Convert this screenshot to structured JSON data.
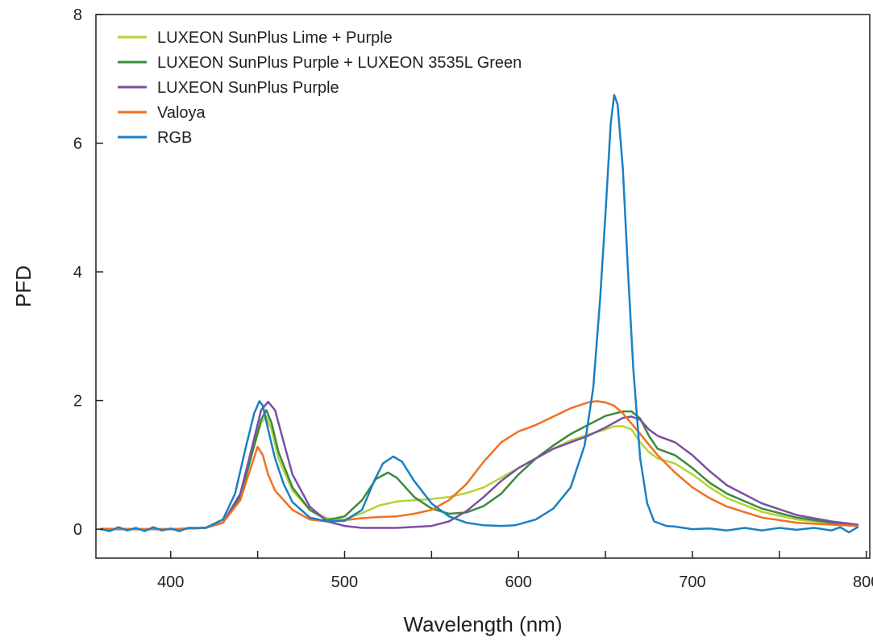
{
  "chart_data": {
    "type": "line",
    "title": "",
    "xlabel": "Wavelength (nm)",
    "ylabel": "PFD",
    "xlim": [
      357,
      802
    ],
    "ylim": [
      -0.45,
      8
    ],
    "xticks": [
      400,
      500,
      600,
      700,
      800
    ],
    "xminor": [
      450,
      550,
      650,
      750
    ],
    "yticks": [
      0,
      2,
      4,
      6,
      8
    ],
    "grid": false,
    "legend": "top-left",
    "series": [
      {
        "name": "LUXEON SunPlus Lime + Purple",
        "color": "#b5d334",
        "points": [
          [
            360,
            0.01
          ],
          [
            400,
            0.0
          ],
          [
            420,
            0.02
          ],
          [
            430,
            0.1
          ],
          [
            440,
            0.5
          ],
          [
            447,
            1.2
          ],
          [
            452,
            1.65
          ],
          [
            455,
            1.75
          ],
          [
            458,
            1.55
          ],
          [
            462,
            1.1
          ],
          [
            470,
            0.6
          ],
          [
            480,
            0.3
          ],
          [
            490,
            0.17
          ],
          [
            500,
            0.15
          ],
          [
            510,
            0.25
          ],
          [
            520,
            0.37
          ],
          [
            530,
            0.43
          ],
          [
            540,
            0.45
          ],
          [
            550,
            0.47
          ],
          [
            560,
            0.5
          ],
          [
            570,
            0.56
          ],
          [
            580,
            0.65
          ],
          [
            590,
            0.8
          ],
          [
            600,
            0.95
          ],
          [
            610,
            1.1
          ],
          [
            620,
            1.25
          ],
          [
            630,
            1.38
          ],
          [
            640,
            1.47
          ],
          [
            650,
            1.55
          ],
          [
            655,
            1.6
          ],
          [
            660,
            1.6
          ],
          [
            665,
            1.55
          ],
          [
            670,
            1.35
          ],
          [
            675,
            1.2
          ],
          [
            680,
            1.1
          ],
          [
            690,
            1.02
          ],
          [
            700,
            0.85
          ],
          [
            710,
            0.65
          ],
          [
            720,
            0.48
          ],
          [
            740,
            0.27
          ],
          [
            760,
            0.15
          ],
          [
            780,
            0.09
          ],
          [
            795,
            0.06
          ]
        ]
      },
      {
        "name": "LUXEON SunPlus Purple + LUXEON 3535L Green",
        "color": "#3c8a3c",
        "points": [
          [
            360,
            0.0
          ],
          [
            400,
            0.0
          ],
          [
            420,
            0.02
          ],
          [
            430,
            0.1
          ],
          [
            440,
            0.5
          ],
          [
            447,
            1.2
          ],
          [
            452,
            1.7
          ],
          [
            455,
            1.85
          ],
          [
            458,
            1.65
          ],
          [
            462,
            1.2
          ],
          [
            470,
            0.65
          ],
          [
            480,
            0.3
          ],
          [
            490,
            0.14
          ],
          [
            500,
            0.2
          ],
          [
            510,
            0.45
          ],
          [
            518,
            0.78
          ],
          [
            525,
            0.88
          ],
          [
            530,
            0.8
          ],
          [
            540,
            0.5
          ],
          [
            550,
            0.32
          ],
          [
            560,
            0.24
          ],
          [
            570,
            0.26
          ],
          [
            580,
            0.36
          ],
          [
            590,
            0.55
          ],
          [
            600,
            0.85
          ],
          [
            610,
            1.1
          ],
          [
            620,
            1.3
          ],
          [
            630,
            1.48
          ],
          [
            640,
            1.62
          ],
          [
            650,
            1.76
          ],
          [
            660,
            1.83
          ],
          [
            665,
            1.83
          ],
          [
            670,
            1.72
          ],
          [
            675,
            1.45
          ],
          [
            680,
            1.25
          ],
          [
            690,
            1.15
          ],
          [
            700,
            0.95
          ],
          [
            710,
            0.72
          ],
          [
            720,
            0.55
          ],
          [
            740,
            0.32
          ],
          [
            760,
            0.18
          ],
          [
            780,
            0.1
          ],
          [
            795,
            0.06
          ]
        ]
      },
      {
        "name": "LUXEON SunPlus Purple",
        "color": "#7b4fa6",
        "points": [
          [
            360,
            0.0
          ],
          [
            400,
            0.0
          ],
          [
            420,
            0.02
          ],
          [
            430,
            0.1
          ],
          [
            440,
            0.55
          ],
          [
            447,
            1.3
          ],
          [
            452,
            1.85
          ],
          [
            456,
            1.98
          ],
          [
            460,
            1.85
          ],
          [
            465,
            1.35
          ],
          [
            470,
            0.85
          ],
          [
            480,
            0.35
          ],
          [
            490,
            0.12
          ],
          [
            500,
            0.05
          ],
          [
            510,
            0.02
          ],
          [
            530,
            0.02
          ],
          [
            550,
            0.05
          ],
          [
            560,
            0.12
          ],
          [
            570,
            0.28
          ],
          [
            580,
            0.5
          ],
          [
            590,
            0.75
          ],
          [
            600,
            0.95
          ],
          [
            610,
            1.1
          ],
          [
            620,
            1.25
          ],
          [
            630,
            1.35
          ],
          [
            640,
            1.45
          ],
          [
            650,
            1.58
          ],
          [
            660,
            1.73
          ],
          [
            665,
            1.75
          ],
          [
            670,
            1.7
          ],
          [
            675,
            1.55
          ],
          [
            680,
            1.45
          ],
          [
            690,
            1.35
          ],
          [
            700,
            1.15
          ],
          [
            710,
            0.9
          ],
          [
            720,
            0.68
          ],
          [
            740,
            0.4
          ],
          [
            760,
            0.22
          ],
          [
            780,
            0.12
          ],
          [
            795,
            0.07
          ]
        ]
      },
      {
        "name": "Valoya",
        "color": "#f07022",
        "points": [
          [
            360,
            0.0
          ],
          [
            400,
            0.0
          ],
          [
            420,
            0.02
          ],
          [
            430,
            0.1
          ],
          [
            440,
            0.45
          ],
          [
            446,
            0.95
          ],
          [
            450,
            1.28
          ],
          [
            453,
            1.15
          ],
          [
            456,
            0.85
          ],
          [
            460,
            0.6
          ],
          [
            470,
            0.3
          ],
          [
            480,
            0.15
          ],
          [
            490,
            0.12
          ],
          [
            500,
            0.14
          ],
          [
            510,
            0.17
          ],
          [
            520,
            0.19
          ],
          [
            530,
            0.2
          ],
          [
            540,
            0.24
          ],
          [
            550,
            0.3
          ],
          [
            560,
            0.45
          ],
          [
            570,
            0.7
          ],
          [
            580,
            1.05
          ],
          [
            590,
            1.35
          ],
          [
            600,
            1.52
          ],
          [
            610,
            1.62
          ],
          [
            620,
            1.75
          ],
          [
            630,
            1.88
          ],
          [
            640,
            1.97
          ],
          [
            645,
            1.99
          ],
          [
            650,
            1.97
          ],
          [
            655,
            1.92
          ],
          [
            660,
            1.8
          ],
          [
            670,
            1.48
          ],
          [
            680,
            1.15
          ],
          [
            690,
            0.88
          ],
          [
            700,
            0.65
          ],
          [
            710,
            0.48
          ],
          [
            720,
            0.35
          ],
          [
            740,
            0.18
          ],
          [
            760,
            0.1
          ],
          [
            780,
            0.07
          ],
          [
            795,
            0.05
          ]
        ]
      },
      {
        "name": "RGB",
        "color": "#1a80c4",
        "points": [
          [
            360,
            0.0
          ],
          [
            365,
            -0.03
          ],
          [
            370,
            0.03
          ],
          [
            375,
            -0.02
          ],
          [
            380,
            0.02
          ],
          [
            385,
            -0.03
          ],
          [
            390,
            0.03
          ],
          [
            395,
            -0.02
          ],
          [
            400,
            0.01
          ],
          [
            405,
            -0.03
          ],
          [
            410,
            0.02
          ],
          [
            420,
            0.02
          ],
          [
            430,
            0.15
          ],
          [
            437,
            0.55
          ],
          [
            443,
            1.25
          ],
          [
            448,
            1.8
          ],
          [
            451,
            1.99
          ],
          [
            453,
            1.92
          ],
          [
            456,
            1.55
          ],
          [
            460,
            1.1
          ],
          [
            465,
            0.7
          ],
          [
            470,
            0.42
          ],
          [
            480,
            0.18
          ],
          [
            490,
            0.12
          ],
          [
            500,
            0.13
          ],
          [
            510,
            0.3
          ],
          [
            517,
            0.75
          ],
          [
            522,
            1.02
          ],
          [
            528,
            1.13
          ],
          [
            533,
            1.05
          ],
          [
            540,
            0.75
          ],
          [
            550,
            0.4
          ],
          [
            560,
            0.2
          ],
          [
            570,
            0.1
          ],
          [
            580,
            0.06
          ],
          [
            590,
            0.05
          ],
          [
            598,
            0.06
          ],
          [
            610,
            0.15
          ],
          [
            620,
            0.32
          ],
          [
            630,
            0.65
          ],
          [
            638,
            1.3
          ],
          [
            643,
            2.2
          ],
          [
            647,
            3.6
          ],
          [
            650,
            4.9
          ],
          [
            653,
            6.3
          ],
          [
            655,
            6.75
          ],
          [
            657,
            6.6
          ],
          [
            660,
            5.6
          ],
          [
            663,
            4.0
          ],
          [
            666,
            2.5
          ],
          [
            670,
            1.1
          ],
          [
            674,
            0.4
          ],
          [
            678,
            0.12
          ],
          [
            685,
            0.05
          ],
          [
            690,
            0.04
          ],
          [
            700,
            0.0
          ],
          [
            710,
            0.01
          ],
          [
            720,
            -0.02
          ],
          [
            730,
            0.02
          ],
          [
            740,
            -0.02
          ],
          [
            750,
            0.02
          ],
          [
            760,
            -0.01
          ],
          [
            770,
            0.02
          ],
          [
            780,
            -0.02
          ],
          [
            785,
            0.03
          ],
          [
            790,
            -0.05
          ],
          [
            795,
            0.03
          ]
        ]
      }
    ]
  }
}
